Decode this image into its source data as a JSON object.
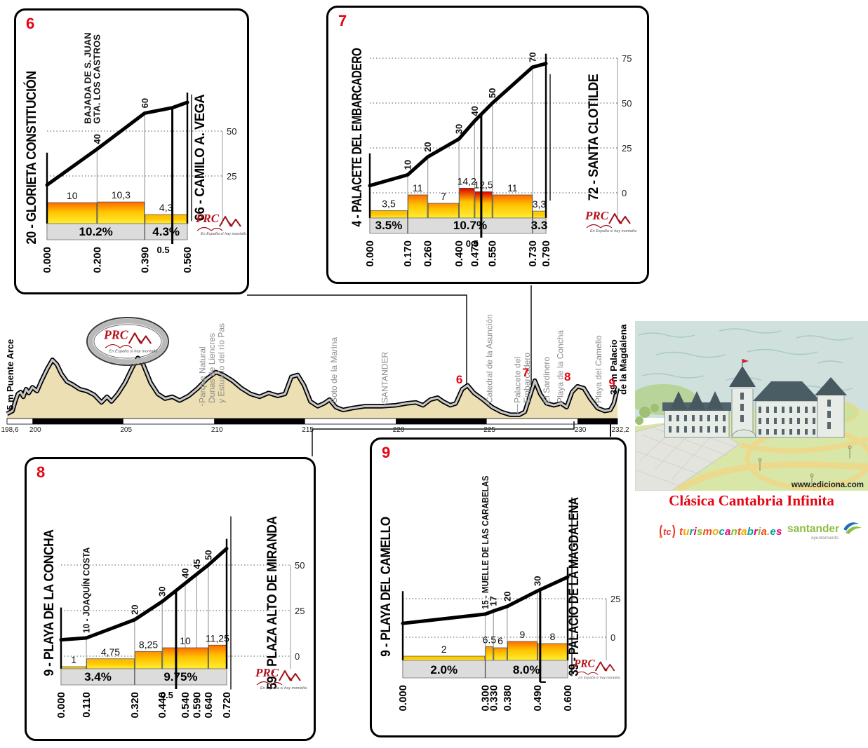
{
  "chart_data": {
    "type": "area",
    "climbs": [
      {
        "number": "6",
        "start_label": "20 - GLORIETA CONSTITUCIÓN",
        "end_label": "66 - CAMILO A. VEGA",
        "km_end": 0.56,
        "profile": [
          [
            0,
            20
          ],
          [
            0.2,
            40
          ],
          [
            0.39,
            60
          ],
          [
            0.5,
            63
          ],
          [
            0.56,
            66
          ]
        ],
        "marks": [
          {
            "km": 0.2,
            "elev": 40,
            "label": "40",
            "names": [
              "BAJADA DE S. JUAN",
              "GTA. LOS CASTROS"
            ]
          },
          {
            "km": 0.39,
            "elev": 60,
            "label": "60"
          }
        ],
        "bars": [
          {
            "from": 0,
            "to": 0.2,
            "grad": 10,
            "label": "10"
          },
          {
            "from": 0.2,
            "to": 0.39,
            "grad": 10.3,
            "label": "10,3"
          },
          {
            "from": 0.39,
            "to": 0.56,
            "grad": 4.3,
            "label": "4,3"
          }
        ],
        "percents": [
          {
            "from": 0,
            "to": 0.39,
            "label": "10.2%"
          },
          {
            "from": 0.39,
            "to": 0.56,
            "label": "4.3%"
          }
        ],
        "xticks": [
          {
            "km": 0,
            "label": "0.000"
          },
          {
            "km": 0.2,
            "label": "0.200"
          },
          {
            "km": 0.39,
            "label": "0.390"
          },
          {
            "km": 0.56,
            "label": "0.560"
          }
        ],
        "half": {
          "km": 0.5,
          "label": "0.5"
        },
        "right_axis": [
          25,
          50
        ]
      },
      {
        "number": "7",
        "start_label": "4 - PALACETE DEL EMBARCADERO",
        "end_label": "72 - SANTA CLOTILDE",
        "km_end": 0.79,
        "profile": [
          [
            0,
            4
          ],
          [
            0.17,
            10
          ],
          [
            0.26,
            20
          ],
          [
            0.4,
            30
          ],
          [
            0.47,
            40
          ],
          [
            0.55,
            50
          ],
          [
            0.73,
            70
          ],
          [
            0.79,
            72
          ]
        ],
        "marks": [
          {
            "km": 0.17,
            "elev": 10,
            "label": "10"
          },
          {
            "km": 0.26,
            "elev": 20,
            "label": "20"
          },
          {
            "km": 0.4,
            "elev": 30,
            "label": "30"
          },
          {
            "km": 0.47,
            "elev": 40,
            "label": "40"
          },
          {
            "km": 0.55,
            "elev": 50,
            "label": "50"
          },
          {
            "km": 0.73,
            "elev": 70,
            "label": "70"
          }
        ],
        "bars": [
          {
            "from": 0,
            "to": 0.17,
            "grad": 3.5,
            "label": "3,5"
          },
          {
            "from": 0.17,
            "to": 0.26,
            "grad": 11,
            "label": "11"
          },
          {
            "from": 0.26,
            "to": 0.4,
            "grad": 7,
            "label": "7"
          },
          {
            "from": 0.4,
            "to": 0.47,
            "grad": 14.2,
            "label": "14,2"
          },
          {
            "from": 0.47,
            "to": 0.55,
            "grad": 12.5,
            "label": "12,5"
          },
          {
            "from": 0.55,
            "to": 0.73,
            "grad": 11,
            "label": "11"
          },
          {
            "from": 0.73,
            "to": 0.79,
            "grad": 3.3,
            "label": "3,3"
          }
        ],
        "percents": [
          {
            "from": 0,
            "to": 0.17,
            "label": "3.5%"
          },
          {
            "from": 0.17,
            "to": 0.73,
            "label": "10.7%"
          },
          {
            "from": 0.73,
            "to": 0.79,
            "label": "3.3"
          }
        ],
        "xticks": [
          {
            "km": 0,
            "label": "0.000"
          },
          {
            "km": 0.17,
            "label": "0.170"
          },
          {
            "km": 0.26,
            "label": "0.260"
          },
          {
            "km": 0.4,
            "label": "0.400"
          },
          {
            "km": 0.47,
            "label": "0.470"
          },
          {
            "km": 0.55,
            "label": "0.550"
          },
          {
            "km": 0.73,
            "label": "0.730"
          },
          {
            "km": 0.79,
            "label": "0.790"
          }
        ],
        "half": {
          "km": 0.5,
          "label": "0.5"
        },
        "right_axis": [
          0,
          25,
          50,
          75
        ]
      },
      {
        "number": "8",
        "start_label": "9 - PLAYA DE LA CONCHA",
        "end_label": "59 - PLAZA ALTO DE MIRANDA",
        "km_end": 0.72,
        "profile": [
          [
            0,
            9
          ],
          [
            0.11,
            10
          ],
          [
            0.32,
            20
          ],
          [
            0.44,
            30
          ],
          [
            0.54,
            40
          ],
          [
            0.59,
            45
          ],
          [
            0.64,
            50
          ],
          [
            0.72,
            59
          ]
        ],
        "marks": [
          {
            "km": 0.11,
            "elev": 10,
            "label": "10 - JOAQUÍN COSTA"
          },
          {
            "km": 0.32,
            "elev": 20,
            "label": "20"
          },
          {
            "km": 0.44,
            "elev": 30,
            "label": "30"
          },
          {
            "km": 0.54,
            "elev": 40,
            "label": "40"
          },
          {
            "km": 0.59,
            "elev": 45,
            "label": "45"
          },
          {
            "km": 0.64,
            "elev": 50,
            "label": "50"
          }
        ],
        "bars": [
          {
            "from": 0,
            "to": 0.11,
            "grad": 1,
            "label": "1"
          },
          {
            "from": 0.11,
            "to": 0.32,
            "grad": 4.75,
            "label": "4,75"
          },
          {
            "from": 0.32,
            "to": 0.44,
            "grad": 8.25,
            "label": "8,25"
          },
          {
            "from": 0.44,
            "to": 0.64,
            "grad": 10,
            "label": "10"
          },
          {
            "from": 0.64,
            "to": 0.72,
            "grad": 11.25,
            "label": "11,25"
          }
        ],
        "percents": [
          {
            "from": 0,
            "to": 0.32,
            "label": "3.4%"
          },
          {
            "from": 0.32,
            "to": 0.72,
            "label": "9.75%"
          }
        ],
        "xticks": [
          {
            "km": 0,
            "label": "0.000"
          },
          {
            "km": 0.11,
            "label": "0.110"
          },
          {
            "km": 0.32,
            "label": "0.320"
          },
          {
            "km": 0.44,
            "label": "0.440"
          },
          {
            "km": 0.54,
            "label": "0.540"
          },
          {
            "km": 0.59,
            "label": "0.590"
          },
          {
            "km": 0.64,
            "label": "0.640"
          },
          {
            "km": 0.72,
            "label": "0.720"
          }
        ],
        "half": {
          "km": 0.5,
          "label": "0.5"
        },
        "right_axis": [
          0,
          25,
          50
        ]
      },
      {
        "number": "9",
        "start_label": "9 - PLAYA DEL CAMELLO",
        "end_label": "39 - PALACIO DE LA MAGDALENA",
        "km_end": 0.6,
        "profile": [
          [
            0,
            9
          ],
          [
            0.3,
            15
          ],
          [
            0.33,
            17
          ],
          [
            0.38,
            20
          ],
          [
            0.49,
            30
          ],
          [
            0.6,
            39
          ]
        ],
        "marks": [
          {
            "km": 0.3,
            "elev": 15,
            "label": "15 - MUELLE DE LAS CARABELAS"
          },
          {
            "km": 0.33,
            "elev": 17,
            "label": "17"
          },
          {
            "km": 0.38,
            "elev": 20,
            "label": "20"
          },
          {
            "km": 0.49,
            "elev": 30,
            "label": "30"
          }
        ],
        "bars": [
          {
            "from": 0,
            "to": 0.3,
            "grad": 2,
            "label": "2"
          },
          {
            "from": 0.3,
            "to": 0.33,
            "grad": 6.5,
            "label": "6.5"
          },
          {
            "from": 0.33,
            "to": 0.38,
            "grad": 6,
            "label": "6"
          },
          {
            "from": 0.38,
            "to": 0.49,
            "grad": 9,
            "label": "9"
          },
          {
            "from": 0.49,
            "to": 0.6,
            "grad": 8,
            "label": "8"
          }
        ],
        "percents": [
          {
            "from": 0,
            "to": 0.3,
            "label": "2.0%"
          },
          {
            "from": 0.3,
            "to": 0.6,
            "label": "8.0%"
          }
        ],
        "xticks": [
          {
            "km": 0,
            "label": "0.000"
          },
          {
            "km": 0.3,
            "label": "0.300"
          },
          {
            "km": 0.33,
            "label": "0.330"
          },
          {
            "km": 0.38,
            "label": "0.380"
          },
          {
            "km": 0.49,
            "label": "0.490"
          },
          {
            "km": 0.6,
            "label": "0.600"
          }
        ],
        "half": {
          "km": 0.5,
          "label": ""
        },
        "right_axis": [
          0,
          25
        ]
      }
    ],
    "main": {
      "km_start": 198.6,
      "km_end": 232.2,
      "points": [
        [
          198.6,
          5
        ],
        [
          198.9,
          8
        ],
        [
          199.05,
          18
        ],
        [
          199.2,
          26
        ],
        [
          199.35,
          28
        ],
        [
          199.5,
          23
        ],
        [
          199.65,
          31
        ],
        [
          199.8,
          27
        ],
        [
          200.0,
          33
        ],
        [
          200.25,
          29
        ],
        [
          200.5,
          40
        ],
        [
          200.8,
          52
        ],
        [
          201.1,
          62
        ],
        [
          201.35,
          57
        ],
        [
          201.6,
          47
        ],
        [
          201.9,
          39
        ],
        [
          202.2,
          36
        ],
        [
          202.6,
          31
        ],
        [
          203.0,
          29
        ],
        [
          203.4,
          25
        ],
        [
          203.8,
          17
        ],
        [
          204.1,
          23
        ],
        [
          204.35,
          18
        ],
        [
          204.7,
          26
        ],
        [
          205.1,
          38
        ],
        [
          205.5,
          54
        ],
        [
          205.8,
          64
        ],
        [
          206.1,
          57
        ],
        [
          206.5,
          38
        ],
        [
          206.9,
          26
        ],
        [
          207.3,
          21
        ],
        [
          207.7,
          23
        ],
        [
          208.1,
          19
        ],
        [
          208.6,
          24
        ],
        [
          209.1,
          32
        ],
        [
          209.6,
          42
        ],
        [
          210.1,
          49
        ],
        [
          210.5,
          46
        ],
        [
          211.0,
          40
        ],
        [
          211.5,
          32
        ],
        [
          212.0,
          26
        ],
        [
          212.5,
          23
        ],
        [
          213.0,
          27
        ],
        [
          213.5,
          24
        ],
        [
          213.9,
          26
        ],
        [
          214.25,
          44
        ],
        [
          214.6,
          46
        ],
        [
          214.95,
          35
        ],
        [
          215.3,
          18
        ],
        [
          215.7,
          13
        ],
        [
          216.05,
          16
        ],
        [
          216.35,
          20
        ],
        [
          216.7,
          12
        ],
        [
          217.1,
          9
        ],
        [
          217.6,
          11
        ],
        [
          218.3,
          13
        ],
        [
          219.2,
          13
        ],
        [
          220.0,
          14
        ],
        [
          220.6,
          16
        ],
        [
          221.1,
          17
        ],
        [
          221.5,
          14
        ],
        [
          221.9,
          20
        ],
        [
          222.3,
          22
        ],
        [
          222.6,
          18
        ],
        [
          223.0,
          14
        ],
        [
          223.3,
          16
        ],
        [
          223.65,
          31
        ],
        [
          223.95,
          35
        ],
        [
          224.3,
          27
        ],
        [
          224.8,
          20
        ],
        [
          225.3,
          12
        ],
        [
          225.8,
          7
        ],
        [
          226.3,
          4
        ],
        [
          226.8,
          4
        ],
        [
          227.1,
          7
        ],
        [
          227.4,
          25
        ],
        [
          227.65,
          40
        ],
        [
          227.95,
          26
        ],
        [
          228.3,
          16
        ],
        [
          228.7,
          14
        ],
        [
          229.1,
          16
        ],
        [
          229.4,
          12
        ],
        [
          229.7,
          28
        ],
        [
          230.0,
          34
        ],
        [
          230.35,
          32
        ],
        [
          230.7,
          21
        ],
        [
          231.1,
          11
        ],
        [
          231.5,
          8
        ],
        [
          231.8,
          9
        ],
        [
          232.0,
          16
        ],
        [
          232.2,
          32
        ]
      ],
      "xticks": [
        {
          "km": 198.6,
          "label": "198,6"
        },
        {
          "km": 200,
          "label": "200"
        },
        {
          "km": 205,
          "label": "205"
        },
        {
          "km": 210,
          "label": "210"
        },
        {
          "km": 215,
          "label": "215"
        },
        {
          "km": 220,
          "label": "220"
        },
        {
          "km": 225,
          "label": "225"
        },
        {
          "km": 230,
          "label": "230"
        },
        {
          "km": 232.2,
          "label": "232,2"
        }
      ],
      "landmarks": [
        {
          "km": 198.8,
          "lines": [
            "5 m Puente Arce"
          ],
          "bold": true
        },
        {
          "km": 209.35,
          "lines": [
            "Parque Natural",
            "Dunas de Liencres",
            "y Estuario del río Pas"
          ]
        },
        {
          "km": 216.6,
          "lines": [
            "Soto de la Marina"
          ]
        },
        {
          "km": 219.4,
          "lines": [
            "SANTANDER"
          ]
        },
        {
          "km": 225.15,
          "lines": [
            "Catedral de la Asunción"
          ]
        },
        {
          "km": 226.7,
          "lines": [
            "Palacete del",
            "Embarcadero"
          ]
        },
        {
          "km": 228.3,
          "lines": [
            "El Sardinero"
          ]
        },
        {
          "km": 229.05,
          "lines": [
            "Playa de la Concha"
          ]
        },
        {
          "km": 231.15,
          "lines": [
            "Playa del Camello"
          ]
        },
        {
          "km": 232.0,
          "lines": [
            "39 m Palacio",
            "de la Magdalena"
          ],
          "bold": true
        }
      ],
      "numbers": [
        {
          "label": "6",
          "km": 223.65
        },
        {
          "label": "7",
          "km": 227.3
        },
        {
          "label": "8",
          "km": 229.6
        },
        {
          "label": "9",
          "km": 232.05
        }
      ]
    }
  },
  "branding": {
    "prc": {
      "name": "PRC",
      "slogan": "En España sí hay montaña"
    },
    "ediciona": "www.ediciona.com",
    "title": "Clásica Cantabria Infinita",
    "turismo": {
      "tc": "tc",
      "text": "turismocantabria.es"
    },
    "santander": {
      "text": "santander",
      "sub": "ayuntamiento"
    }
  }
}
